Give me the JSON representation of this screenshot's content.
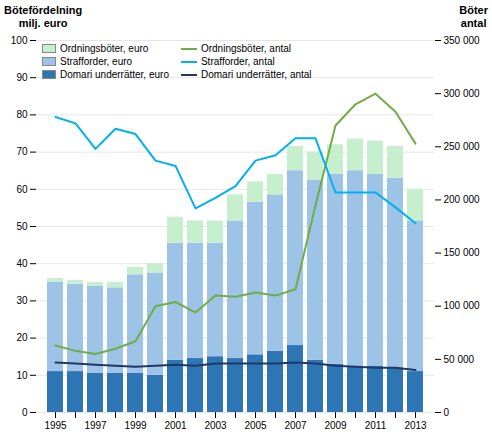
{
  "chart_data": {
    "type": "bar",
    "ylabel": "Bötefördelning\n  milj. euro",
    "y2label": "Böter\nantal",
    "categories": [
      "1995",
      null,
      "1997",
      null,
      "1999",
      null,
      "2001",
      null,
      "2003",
      null,
      "2005",
      null,
      "2007",
      null,
      "2009",
      null,
      "2011",
      null,
      "2013"
    ],
    "series": [
      {
        "name": "Domari underrätter, euro",
        "type": "bar",
        "color": "#2e75b6",
        "values": [
          11.0,
          11.0,
          10.5,
          10.5,
          10.5,
          10.0,
          14.0,
          14.5,
          15.0,
          14.5,
          15.5,
          16.5,
          18.0,
          14.0,
          13.0,
          12.5,
          12.5,
          12.0,
          11.0
        ]
      },
      {
        "name": "Strafforder, euro",
        "type": "bar",
        "color": "#9dc3e6",
        "values": [
          24.0,
          23.5,
          23.5,
          23.0,
          26.5,
          27.5,
          31.5,
          31.0,
          30.5,
          37.0,
          41.0,
          42.0,
          47.0,
          48.5,
          51.0,
          52.5,
          51.5,
          51.0,
          40.5
        ]
      },
      {
        "name": "Ordningsböter, euro",
        "type": "bar",
        "color": "#c6efce",
        "values": [
          1.0,
          1.0,
          1.0,
          1.5,
          2.0,
          2.5,
          7.0,
          6.0,
          6.0,
          7.0,
          5.5,
          5.5,
          6.5,
          7.5,
          8.0,
          8.5,
          9.0,
          8.5,
          8.5
        ]
      },
      {
        "name": "Ordningsböter, antal",
        "type": "line",
        "axis": "y2",
        "color": "#70ad47",
        "values": [
          63000,
          58000,
          55000,
          60000,
          67000,
          100000,
          104000,
          94000,
          110000,
          109000,
          113000,
          110000,
          116000,
          195000,
          270000,
          290000,
          300000,
          283000,
          253000
        ]
      },
      {
        "name": "Strafforder, antal",
        "type": "line",
        "axis": "y2",
        "color": "#00b0f0",
        "values": [
          278000,
          272000,
          248000,
          267000,
          262000,
          237000,
          232000,
          192000,
          202000,
          213000,
          237000,
          242000,
          258000,
          258000,
          207000,
          207000,
          207000,
          193000,
          178000
        ]
      },
      {
        "name": "Domari underrätter, antal",
        "type": "line",
        "axis": "y2",
        "color": "#1f3864",
        "values": [
          47000,
          46000,
          45000,
          44000,
          43000,
          44000,
          45000,
          44000,
          46000,
          46000,
          46000,
          46000,
          47000,
          46000,
          44000,
          43000,
          42000,
          42000,
          40000
        ]
      }
    ],
    "stacked": true,
    "ylim": [
      0,
      100
    ],
    "yticks": [
      0,
      10,
      20,
      30,
      40,
      50,
      60,
      70,
      80,
      90,
      100
    ],
    "y2lim": [
      0,
      350000
    ],
    "y2ticks": [
      0,
      {
        "value": 50000,
        "label": "50 000"
      },
      {
        "value": 100000,
        "label": "100 000"
      },
      {
        "value": 150000,
        "label": "150 000"
      },
      {
        "value": 200000,
        "label": "200 000"
      },
      {
        "value": 250000,
        "label": "250 000"
      },
      {
        "value": 300000,
        "label": "300 000"
      },
      {
        "value": 350000,
        "label": "350 000"
      }
    ],
    "grid": true,
    "legend": "upper left"
  }
}
